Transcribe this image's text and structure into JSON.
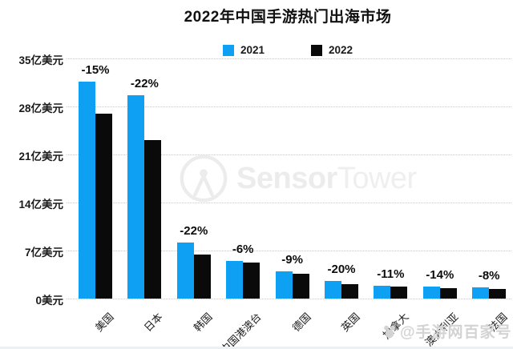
{
  "title": "2022年中国手游热门出海市场",
  "legend": [
    {
      "label": "2021",
      "color": "#0ea0f3"
    },
    {
      "label": "2022",
      "color": "#0a0a0a"
    }
  ],
  "watermark": {
    "brand_bold": "Sensor",
    "brand_light": "Tower",
    "badge": "@手游网百家号"
  },
  "chart_data": {
    "type": "bar",
    "title": "2022年中国手游热门出海市场",
    "categories": [
      "美国",
      "日本",
      "韩国",
      "中国港澳台",
      "德国",
      "英国",
      "加拿大",
      "澳大利亚",
      "法国"
    ],
    "series": [
      {
        "name": "2021",
        "color": "#0ea0f3",
        "values": [
          31.6,
          29.6,
          8.2,
          5.5,
          4.0,
          2.6,
          1.9,
          1.8,
          1.6
        ]
      },
      {
        "name": "2022",
        "color": "#0a0a0a",
        "values": [
          26.9,
          23.1,
          6.4,
          5.2,
          3.6,
          2.1,
          1.7,
          1.55,
          1.45
        ]
      }
    ],
    "pct_labels": [
      "-15%",
      "-22%",
      "-22%",
      "-6%",
      "-9%",
      "-20%",
      "-11%",
      "-14%",
      "-8%"
    ],
    "y_ticks": [
      "35亿美元",
      "28亿美元",
      "21亿美元",
      "14亿美元",
      "7亿美元",
      "0美元"
    ],
    "ylim": [
      0,
      35
    ],
    "xlabel": "",
    "ylabel": "亿美元",
    "grid": "horizontal-dotted",
    "legend_position": "top"
  }
}
